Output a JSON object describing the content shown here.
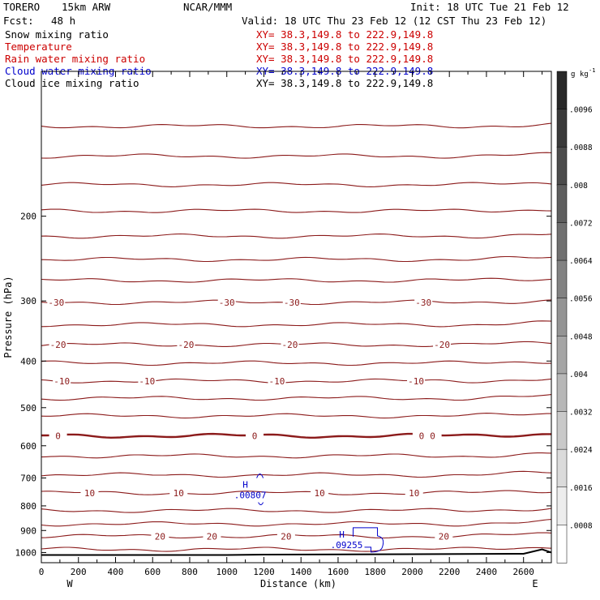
{
  "header": {
    "model": "TORERO",
    "resolution": "15km ARW",
    "org": "NCAR/MMM",
    "init": "Init: 18 UTC Tue 21 Feb 12",
    "fcst_label": "Fcst:",
    "fcst_value": "48 h",
    "valid": "Valid: 18 UTC Thu 23 Feb 12 (12 CST Thu 23 Feb 12)"
  },
  "fields": [
    {
      "name": "Snow mixing ratio",
      "color": "#000000",
      "xy": "XY= 38.3,149.8 to 222.9,149.8"
    },
    {
      "name": "Temperature",
      "color": "#cc0000",
      "xy": "XY= 38.3,149.8 to 222.9,149.8"
    },
    {
      "name": "Rain water mixing ratio",
      "color": "#cc0000",
      "xy": "XY= 38.3,149.8 to 222.9,149.8"
    },
    {
      "name": "Cloud water mixing ratio",
      "color": "#0000cc",
      "xy": "XY= 38.3,149.8 to 222.9,149.8"
    },
    {
      "name": "Cloud ice mixing ratio",
      "color": "#000000",
      "xy": "XY= 38.3,149.8 to 222.9,149.8"
    }
  ],
  "colorbar": {
    "unit": "g kg",
    "unit_exp": "-1",
    "ticks": [
      ".0096",
      ".0088",
      ".008",
      ".0072",
      ".0064",
      ".0056",
      ".0048",
      ".004",
      ".0032",
      ".0024",
      ".0016",
      ".0008"
    ]
  },
  "chart_data": {
    "type": "cross-section contour",
    "xlabel": "Distance (km)",
    "ylabel": "Pressure (hPa)",
    "x_ticks": [
      0,
      100,
      200,
      300,
      400,
      500,
      600,
      700,
      800,
      900,
      1000,
      1100,
      1200,
      1300,
      1400,
      1500,
      1600,
      1700,
      1800,
      1900,
      2000,
      2100,
      2200,
      2300,
      2400,
      2500,
      2600,
      2700
    ],
    "x_tick_labels": [
      "0",
      "200",
      "400",
      "600",
      "800",
      "1000",
      "1200",
      "1400",
      "1600",
      "1800",
      "2000",
      "2200",
      "2400",
      "2600"
    ],
    "xlim": [
      0,
      2750
    ],
    "y_ticks": [
      200,
      300,
      400,
      500,
      600,
      700,
      800,
      900,
      1000
    ],
    "ylim": [
      1050,
      100
    ],
    "y_scale": "log",
    "west_label": "W",
    "east_label": "E",
    "temperature_contours": {
      "color": "#8b1a1a",
      "levels": [
        {
          "p": 130
        },
        {
          "p": 150
        },
        {
          "p": 172
        },
        {
          "p": 195
        },
        {
          "p": 220
        },
        {
          "p": 246
        },
        {
          "p": 272
        },
        {
          "p": 302,
          "label": "-30",
          "label_x": [
            80,
            1000,
            1350,
            2060
          ]
        },
        {
          "p": 336
        },
        {
          "p": 370,
          "label": "-20",
          "label_x": [
            90,
            780,
            1340,
            2160
          ]
        },
        {
          "p": 404
        },
        {
          "p": 440,
          "label": "-10",
          "label_x": [
            110,
            570,
            1270,
            2020
          ]
        },
        {
          "p": 478
        },
        {
          "p": 520
        },
        {
          "p": 572,
          "label": "0",
          "label_x": [
            90,
            1150,
            2050,
            2110
          ],
          "bold": true
        },
        {
          "p": 630
        },
        {
          "p": 690
        },
        {
          "p": 752,
          "label": "10",
          "label_x": [
            260,
            740,
            1500,
            2010
          ]
        },
        {
          "p": 818
        },
        {
          "p": 872
        },
        {
          "p": 925,
          "label": "20",
          "label_x": [
            640,
            920,
            1320,
            2170
          ]
        },
        {
          "p": 985
        }
      ]
    },
    "cloud_water_maxima": [
      {
        "label": "H",
        "value": ".00807",
        "x": 1100,
        "p": 745
      },
      {
        "label": "H",
        "value": ".09255",
        "x": 1620,
        "p": 945
      }
    ],
    "terrain_pressure_hPa": [
      [
        0,
        1012
      ],
      [
        1000,
        1012
      ],
      [
        1200,
        1010
      ],
      [
        2000,
        1008
      ],
      [
        2600,
        1006
      ],
      [
        2700,
        985
      ],
      [
        2750,
        1000
      ]
    ]
  }
}
